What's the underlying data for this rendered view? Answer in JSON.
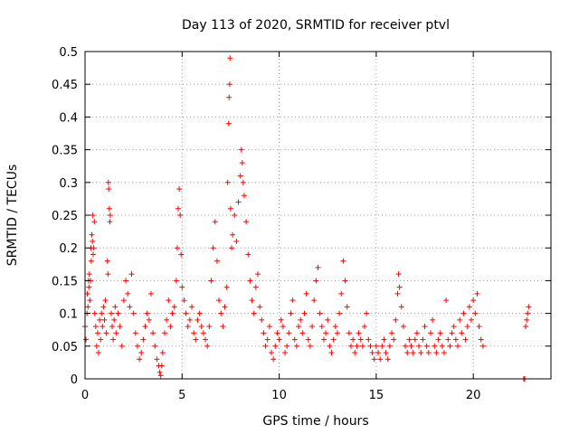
{
  "chart_data": {
    "type": "scatter",
    "title": "Day 113 of 2020, SRMTID for receiver ptvl",
    "xlabel": "GPS time / hours",
    "ylabel": "SRMTID / TECUs",
    "xlim": [
      0,
      24
    ],
    "ylim": [
      0,
      0.5
    ],
    "xticks": [
      "0",
      "5",
      "10",
      "15",
      "20"
    ],
    "yticks": [
      "0",
      "0.05",
      "0.1",
      "0.15",
      "0.2",
      "0.25",
      "0.3",
      "0.35",
      "0.4",
      "0.45",
      "0.5"
    ],
    "grid": true,
    "marker": "+",
    "color": "#ff0000",
    "points": [
      [
        0.0,
        0.08
      ],
      [
        0.05,
        0.06
      ],
      [
        0.1,
        0.1
      ],
      [
        0.12,
        0.13
      ],
      [
        0.15,
        0.11
      ],
      [
        0.18,
        0.15
      ],
      [
        0.2,
        0.14
      ],
      [
        0.22,
        0.16
      ],
      [
        0.25,
        0.12
      ],
      [
        0.28,
        0.15
      ],
      [
        0.3,
        0.2
      ],
      [
        0.32,
        0.18
      ],
      [
        0.35,
        0.22
      ],
      [
        0.38,
        0.21
      ],
      [
        0.4,
        0.25
      ],
      [
        0.42,
        0.19
      ],
      [
        0.45,
        0.2
      ],
      [
        0.48,
        0.24
      ],
      [
        0.5,
        0.1
      ],
      [
        0.55,
        0.08
      ],
      [
        0.6,
        0.05
      ],
      [
        0.65,
        0.07
      ],
      [
        0.7,
        0.04
      ],
      [
        0.75,
        0.09
      ],
      [
        0.8,
        0.06
      ],
      [
        0.85,
        0.1
      ],
      [
        0.9,
        0.08
      ],
      [
        0.95,
        0.11
      ],
      [
        1.0,
        0.09
      ],
      [
        1.05,
        0.12
      ],
      [
        1.1,
        0.07
      ],
      [
        1.15,
        0.18
      ],
      [
        1.18,
        0.16
      ],
      [
        1.2,
        0.3
      ],
      [
        1.22,
        0.29
      ],
      [
        1.25,
        0.26
      ],
      [
        1.28,
        0.24
      ],
      [
        1.3,
        0.25
      ],
      [
        1.35,
        0.1
      ],
      [
        1.4,
        0.08
      ],
      [
        1.45,
        0.06
      ],
      [
        1.5,
        0.09
      ],
      [
        1.55,
        0.11
      ],
      [
        1.6,
        0.07
      ],
      [
        1.7,
        0.1
      ],
      [
        1.8,
        0.08
      ],
      [
        1.9,
        0.05
      ],
      [
        2.0,
        0.12
      ],
      [
        2.1,
        0.15
      ],
      [
        2.2,
        0.13
      ],
      [
        2.3,
        0.11
      ],
      [
        2.4,
        0.16
      ],
      [
        2.5,
        0.1
      ],
      [
        2.6,
        0.07
      ],
      [
        2.7,
        0.05
      ],
      [
        2.8,
        0.03
      ],
      [
        2.9,
        0.04
      ],
      [
        3.0,
        0.06
      ],
      [
        3.1,
        0.08
      ],
      [
        3.2,
        0.1
      ],
      [
        3.3,
        0.09
      ],
      [
        3.4,
        0.13
      ],
      [
        3.5,
        0.07
      ],
      [
        3.6,
        0.05
      ],
      [
        3.7,
        0.03
      ],
      [
        3.8,
        0.02
      ],
      [
        3.85,
        0.01
      ],
      [
        3.9,
        0.005
      ],
      [
        3.95,
        0.02
      ],
      [
        4.0,
        0.04
      ],
      [
        4.1,
        0.07
      ],
      [
        4.2,
        0.09
      ],
      [
        4.3,
        0.12
      ],
      [
        4.4,
        0.08
      ],
      [
        4.5,
        0.1
      ],
      [
        4.6,
        0.11
      ],
      [
        4.7,
        0.15
      ],
      [
        4.75,
        0.2
      ],
      [
        4.8,
        0.26
      ],
      [
        4.85,
        0.29
      ],
      [
        4.9,
        0.25
      ],
      [
        4.95,
        0.19
      ],
      [
        5.0,
        0.14
      ],
      [
        5.1,
        0.12
      ],
      [
        5.2,
        0.1
      ],
      [
        5.3,
        0.08
      ],
      [
        5.4,
        0.09
      ],
      [
        5.5,
        0.11
      ],
      [
        5.6,
        0.07
      ],
      [
        5.7,
        0.06
      ],
      [
        5.8,
        0.09
      ],
      [
        5.9,
        0.1
      ],
      [
        6.0,
        0.08
      ],
      [
        6.1,
        0.07
      ],
      [
        6.2,
        0.06
      ],
      [
        6.3,
        0.05
      ],
      [
        6.4,
        0.08
      ],
      [
        6.5,
        0.15
      ],
      [
        6.6,
        0.2
      ],
      [
        6.7,
        0.24
      ],
      [
        6.8,
        0.18
      ],
      [
        6.9,
        0.12
      ],
      [
        7.0,
        0.1
      ],
      [
        7.1,
        0.08
      ],
      [
        7.2,
        0.11
      ],
      [
        7.3,
        0.14
      ],
      [
        7.35,
        0.3
      ],
      [
        7.4,
        0.39
      ],
      [
        7.42,
        0.43
      ],
      [
        7.45,
        0.45
      ],
      [
        7.47,
        0.49
      ],
      [
        7.5,
        0.26
      ],
      [
        7.55,
        0.2
      ],
      [
        7.6,
        0.22
      ],
      [
        7.7,
        0.25
      ],
      [
        7.8,
        0.21
      ],
      [
        7.9,
        0.27
      ],
      [
        8.0,
        0.31
      ],
      [
        8.05,
        0.35
      ],
      [
        8.1,
        0.33
      ],
      [
        8.15,
        0.3
      ],
      [
        8.2,
        0.28
      ],
      [
        8.3,
        0.24
      ],
      [
        8.4,
        0.19
      ],
      [
        8.5,
        0.15
      ],
      [
        8.6,
        0.12
      ],
      [
        8.7,
        0.1
      ],
      [
        8.8,
        0.14
      ],
      [
        8.9,
        0.16
      ],
      [
        9.0,
        0.11
      ],
      [
        9.1,
        0.09
      ],
      [
        9.2,
        0.07
      ],
      [
        9.3,
        0.05
      ],
      [
        9.4,
        0.06
      ],
      [
        9.5,
        0.08
      ],
      [
        9.6,
        0.04
      ],
      [
        9.7,
        0.03
      ],
      [
        9.8,
        0.05
      ],
      [
        9.9,
        0.07
      ],
      [
        10.0,
        0.06
      ],
      [
        10.1,
        0.09
      ],
      [
        10.2,
        0.08
      ],
      [
        10.3,
        0.04
      ],
      [
        10.4,
        0.05
      ],
      [
        10.5,
        0.07
      ],
      [
        10.6,
        0.1
      ],
      [
        10.7,
        0.12
      ],
      [
        10.8,
        0.06
      ],
      [
        10.9,
        0.05
      ],
      [
        11.0,
        0.08
      ],
      [
        11.1,
        0.09
      ],
      [
        11.2,
        0.07
      ],
      [
        11.3,
        0.1
      ],
      [
        11.4,
        0.13
      ],
      [
        11.5,
        0.06
      ],
      [
        11.6,
        0.05
      ],
      [
        11.7,
        0.08
      ],
      [
        11.8,
        0.12
      ],
      [
        11.9,
        0.15
      ],
      [
        12.0,
        0.17
      ],
      [
        12.1,
        0.1
      ],
      [
        12.2,
        0.08
      ],
      [
        12.3,
        0.06
      ],
      [
        12.4,
        0.07
      ],
      [
        12.5,
        0.09
      ],
      [
        12.6,
        0.05
      ],
      [
        12.7,
        0.04
      ],
      [
        12.8,
        0.06
      ],
      [
        12.9,
        0.08
      ],
      [
        13.0,
        0.07
      ],
      [
        13.1,
        0.1
      ],
      [
        13.2,
        0.13
      ],
      [
        13.3,
        0.18
      ],
      [
        13.4,
        0.15
      ],
      [
        13.5,
        0.11
      ],
      [
        13.6,
        0.07
      ],
      [
        13.7,
        0.05
      ],
      [
        13.8,
        0.06
      ],
      [
        13.9,
        0.04
      ],
      [
        14.0,
        0.05
      ],
      [
        14.1,
        0.07
      ],
      [
        14.2,
        0.06
      ],
      [
        14.3,
        0.05
      ],
      [
        14.4,
        0.08
      ],
      [
        14.5,
        0.1
      ],
      [
        14.6,
        0.06
      ],
      [
        14.7,
        0.05
      ],
      [
        14.8,
        0.04
      ],
      [
        14.9,
        0.03
      ],
      [
        15.0,
        0.05
      ],
      [
        15.1,
        0.04
      ],
      [
        15.2,
        0.03
      ],
      [
        15.3,
        0.05
      ],
      [
        15.4,
        0.06
      ],
      [
        15.5,
        0.04
      ],
      [
        15.6,
        0.03
      ],
      [
        15.7,
        0.05
      ],
      [
        15.8,
        0.07
      ],
      [
        15.9,
        0.06
      ],
      [
        16.0,
        0.09
      ],
      [
        16.1,
        0.13
      ],
      [
        16.15,
        0.16
      ],
      [
        16.2,
        0.14
      ],
      [
        16.3,
        0.11
      ],
      [
        16.4,
        0.08
      ],
      [
        16.5,
        0.05
      ],
      [
        16.6,
        0.04
      ],
      [
        16.7,
        0.06
      ],
      [
        16.8,
        0.05
      ],
      [
        16.9,
        0.04
      ],
      [
        17.0,
        0.06
      ],
      [
        17.1,
        0.07
      ],
      [
        17.2,
        0.05
      ],
      [
        17.3,
        0.04
      ],
      [
        17.4,
        0.06
      ],
      [
        17.5,
        0.08
      ],
      [
        17.6,
        0.05
      ],
      [
        17.7,
        0.04
      ],
      [
        17.8,
        0.07
      ],
      [
        17.9,
        0.09
      ],
      [
        18.0,
        0.05
      ],
      [
        18.1,
        0.04
      ],
      [
        18.2,
        0.06
      ],
      [
        18.3,
        0.07
      ],
      [
        18.4,
        0.05
      ],
      [
        18.5,
        0.04
      ],
      [
        18.6,
        0.12
      ],
      [
        18.7,
        0.06
      ],
      [
        18.8,
        0.05
      ],
      [
        18.9,
        0.07
      ],
      [
        19.0,
        0.08
      ],
      [
        19.1,
        0.06
      ],
      [
        19.2,
        0.05
      ],
      [
        19.3,
        0.09
      ],
      [
        19.4,
        0.07
      ],
      [
        19.5,
        0.1
      ],
      [
        19.6,
        0.06
      ],
      [
        19.7,
        0.08
      ],
      [
        19.8,
        0.11
      ],
      [
        19.9,
        0.09
      ],
      [
        20.0,
        0.12
      ],
      [
        20.1,
        0.1
      ],
      [
        20.2,
        0.13
      ],
      [
        20.3,
        0.08
      ],
      [
        20.4,
        0.06
      ],
      [
        20.5,
        0.05
      ],
      [
        22.6,
        0.0
      ],
      [
        22.65,
        0.0
      ],
      [
        22.7,
        0.08
      ],
      [
        22.75,
        0.09
      ],
      [
        22.8,
        0.1
      ],
      [
        22.85,
        0.11
      ]
    ]
  }
}
